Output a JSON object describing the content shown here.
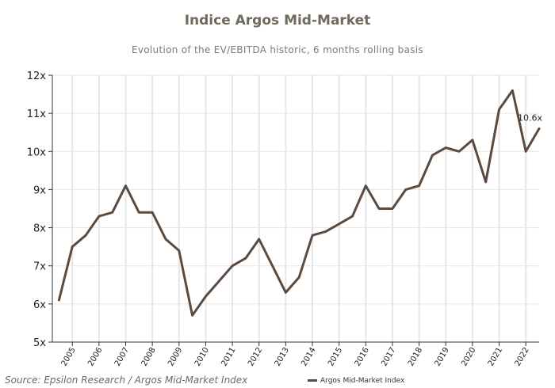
{
  "title": "Indice Argos Mid-Market",
  "subtitle": "Evolution of the EV/EBITDA historic, 6 months rolling basis",
  "source": "Source: Epsilon Research / Argos Mid-Market Index",
  "colors": {
    "line": "#5b4a3d",
    "grid": "#e6e6e6",
    "axis": "#333333",
    "title": "#6f6a5c"
  },
  "chart_data": {
    "type": "line",
    "x_ticks": [
      "2005",
      "2006",
      "2007",
      "2008",
      "2009",
      "2010",
      "2011",
      "2012",
      "2013",
      "2014",
      "2015",
      "2016",
      "2017",
      "2018",
      "2019",
      "2020",
      "2021",
      "2022"
    ],
    "y_ticks": [
      "5x",
      "6x",
      "7x",
      "8x",
      "9x",
      "10x",
      "11x",
      "12x"
    ],
    "ylim": [
      5,
      12
    ],
    "xlim": [
      2004.25,
      2022.5
    ],
    "grid": true,
    "legend_position": "bottom-center",
    "annotation": {
      "text": "10.6x",
      "x": 2022.5,
      "y": 10.6
    },
    "series": [
      {
        "name": "Argos Mid-Market Index",
        "x": [
          2004.5,
          2005.0,
          2005.5,
          2006.0,
          2006.5,
          2007.0,
          2007.5,
          2008.0,
          2008.5,
          2009.0,
          2009.5,
          2010.0,
          2010.5,
          2011.0,
          2011.5,
          2012.0,
          2012.5,
          2013.0,
          2013.5,
          2014.0,
          2014.5,
          2015.0,
          2015.5,
          2016.0,
          2016.5,
          2017.0,
          2017.5,
          2018.0,
          2018.5,
          2019.0,
          2019.5,
          2020.0,
          2020.5,
          2021.0,
          2021.5,
          2022.0,
          2022.5
        ],
        "values": [
          6.1,
          7.5,
          7.8,
          8.3,
          8.4,
          9.1,
          8.4,
          8.4,
          7.7,
          7.4,
          5.7,
          6.2,
          6.6,
          7.0,
          7.2,
          7.7,
          7.0,
          6.3,
          6.7,
          7.8,
          7.9,
          8.1,
          8.3,
          9.1,
          8.5,
          8.5,
          9.0,
          9.1,
          9.9,
          10.1,
          10.0,
          10.3,
          9.2,
          11.1,
          11.6,
          10.0,
          10.6
        ]
      }
    ]
  }
}
